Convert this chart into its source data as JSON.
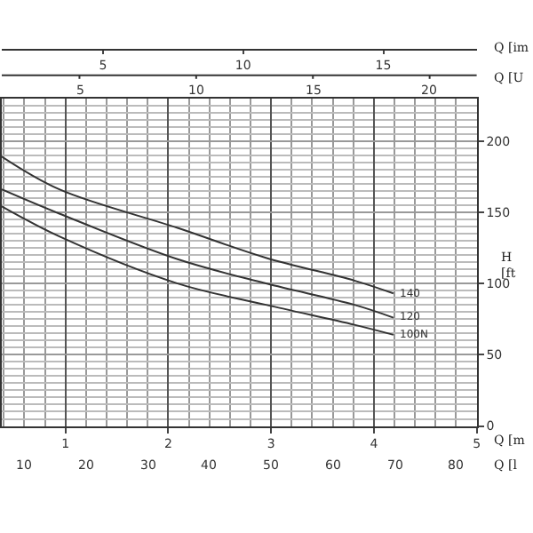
{
  "chart_data": {
    "type": "line",
    "xlabel": "Q [m",
    "x2label": "Q [im",
    "ylabel": "H\n[ft",
    "annotations": [
      "Q [U",
      "Q [l",
      "5",
      "10",
      "15",
      "20",
      "10",
      "20",
      "30",
      "40",
      "50",
      "60",
      "70",
      "80"
    ],
    "xlim": [
      0.38,
      5
    ],
    "xticks": [
      1,
      2,
      3,
      4,
      5
    ],
    "x2lim": [
      1.39,
      18.33
    ],
    "x2ticks": [
      5,
      10,
      15
    ],
    "ylim": [
      0,
      230
    ],
    "yticks": [
      0,
      50,
      100,
      150,
      200
    ],
    "grid": true,
    "marker": "none",
    "line_style": "solid",
    "series": [
      {
        "name": "140",
        "color": "#333333",
        "x": [
          0.38,
          0.94,
          2.09,
          2.95,
          3.81,
          4.19
        ],
        "values": [
          189,
          166,
          139,
          118,
          102,
          93
        ]
      },
      {
        "name": "120",
        "color": "#333333",
        "x": [
          0.38,
          0.94,
          2.09,
          2.95,
          3.81,
          4.19
        ],
        "values": [
          166,
          149,
          117,
          100,
          85,
          76
        ]
      },
      {
        "name": "100N",
        "color": "#333333",
        "x": [
          0.38,
          0.94,
          2.09,
          2.95,
          3.81,
          4.19
        ],
        "values": [
          154,
          133,
          100,
          85,
          71,
          64
        ]
      }
    ]
  }
}
